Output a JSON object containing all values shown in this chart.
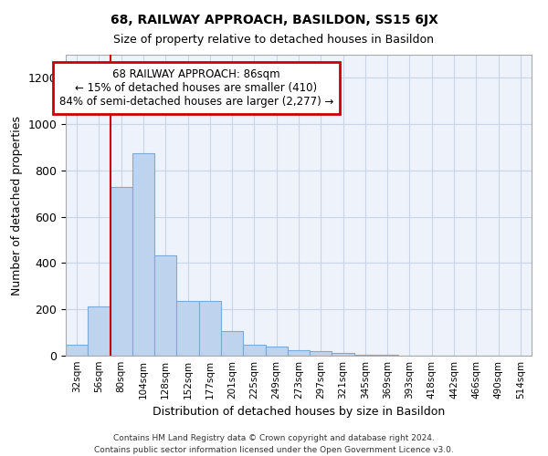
{
  "title": "68, RAILWAY APPROACH, BASILDON, SS15 6JX",
  "subtitle": "Size of property relative to detached houses in Basildon",
  "xlabel": "Distribution of detached houses by size in Basildon",
  "ylabel": "Number of detached properties",
  "footer_line1": "Contains HM Land Registry data © Crown copyright and database right 2024.",
  "footer_line2": "Contains public sector information licensed under the Open Government Licence v3.0.",
  "categories": [
    "32sqm",
    "56sqm",
    "80sqm",
    "104sqm",
    "128sqm",
    "152sqm",
    "177sqm",
    "201sqm",
    "225sqm",
    "249sqm",
    "273sqm",
    "297sqm",
    "321sqm",
    "345sqm",
    "369sqm",
    "393sqm",
    "418sqm",
    "442sqm",
    "466sqm",
    "490sqm",
    "514sqm"
  ],
  "bar_values": [
    48,
    212,
    728,
    875,
    432,
    235,
    235,
    105,
    48,
    38,
    25,
    18,
    10,
    4,
    2,
    1,
    1,
    0,
    0,
    0,
    0
  ],
  "bar_color": "#bed3ee",
  "bar_edge_color": "#7baad4",
  "ylim": [
    0,
    1300
  ],
  "yticks": [
    0,
    200,
    400,
    600,
    800,
    1000,
    1200
  ],
  "property_line_index": 2,
  "annotation_title": "68 RAILWAY APPROACH: 86sqm",
  "annotation_line2": "← 15% of detached houses are smaller (410)",
  "annotation_line3": "84% of semi-detached houses are larger (2,277) →",
  "annotation_box_color": "#ffffff",
  "annotation_box_edge_color": "#cc0000",
  "red_line_color": "#cc0000",
  "grid_color": "#c8d4e8",
  "background_color": "#eef2fb"
}
